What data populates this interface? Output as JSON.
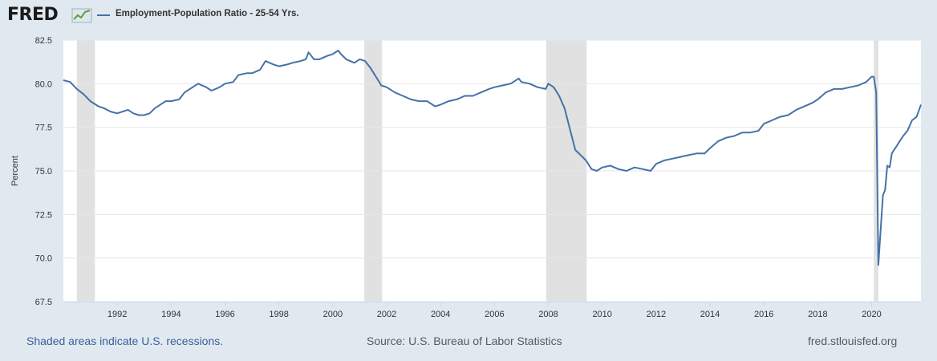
{
  "header": {
    "logo_text": "FRED",
    "logo_icon": "line-graph-icon",
    "series_title": "Employment-Population Ratio - 25-54 Yrs."
  },
  "footer": {
    "recession_note": "Shaded areas indicate U.S. recessions.",
    "source": "Source: U.S. Bureau of Labor Statistics",
    "site": "fred.stlouisfed.org"
  },
  "colors": {
    "line": "#4572a7",
    "recession": "#e1e1e1",
    "background": "#e1e9f0",
    "plot_background": "#ffffff",
    "grid": "#e6e6e6",
    "logo_green": "#57a338"
  },
  "chart_data": {
    "type": "line",
    "title": "",
    "xlabel": "",
    "ylabel": "Percent",
    "xlim": [
      1990.0,
      2021.83
    ],
    "ylim": [
      67.5,
      82.5
    ],
    "y_ticks": [
      "67.5",
      "70.0",
      "72.5",
      "75.0",
      "77.5",
      "80.0",
      "82.5"
    ],
    "x_ticks": [
      "1992",
      "1994",
      "1996",
      "1998",
      "2000",
      "2002",
      "2004",
      "2006",
      "2008",
      "2010",
      "2012",
      "2014",
      "2016",
      "2018",
      "2020"
    ],
    "grid": true,
    "legend": "top-left",
    "recessions": [
      [
        1990.5,
        1991.17
      ],
      [
        2001.17,
        2001.83
      ],
      [
        2007.92,
        2009.42
      ],
      [
        2020.08,
        2020.25
      ]
    ],
    "series": [
      {
        "name": "Employment-Population Ratio - 25-54 Yrs.",
        "x": [
          1990.0,
          1990.25,
          1990.5,
          1990.75,
          1991.0,
          1991.2,
          1991.3,
          1991.5,
          1991.75,
          1992.0,
          1992.2,
          1992.4,
          1992.6,
          1992.8,
          1993.0,
          1993.2,
          1993.4,
          1993.6,
          1993.8,
          1994.0,
          1994.3,
          1994.5,
          1994.8,
          1995.0,
          1995.3,
          1995.5,
          1995.8,
          1996.0,
          1996.3,
          1996.5,
          1996.8,
          1997.0,
          1997.3,
          1997.5,
          1997.8,
          1998.0,
          1998.3,
          1998.5,
          1998.8,
          1999.0,
          1999.1,
          1999.3,
          1999.5,
          1999.8,
          2000.0,
          2000.2,
          2000.3,
          2000.5,
          2000.8,
          2001.0,
          2001.2,
          2001.4,
          2001.6,
          2001.8,
          2002.0,
          2002.3,
          2002.6,
          2002.9,
          2003.2,
          2003.5,
          2003.8,
          2004.0,
          2004.3,
          2004.6,
          2004.9,
          2005.2,
          2005.5,
          2005.8,
          2006.0,
          2006.3,
          2006.6,
          2006.9,
          2007.0,
          2007.3,
          2007.6,
          2007.9,
          2008.0,
          2008.2,
          2008.4,
          2008.6,
          2008.8,
          2009.0,
          2009.2,
          2009.4,
          2009.6,
          2009.8,
          2010.0,
          2010.3,
          2010.6,
          2010.9,
          2011.2,
          2011.5,
          2011.8,
          2012.0,
          2012.3,
          2012.6,
          2012.9,
          2013.2,
          2013.5,
          2013.8,
          2014.0,
          2014.3,
          2014.6,
          2014.9,
          2015.2,
          2015.5,
          2015.8,
          2016.0,
          2016.3,
          2016.6,
          2016.9,
          2017.2,
          2017.5,
          2017.8,
          2018.0,
          2018.3,
          2018.6,
          2018.9,
          2019.2,
          2019.5,
          2019.8,
          2020.0,
          2020.08,
          2020.17,
          2020.25,
          2020.33,
          2020.42,
          2020.5,
          2020.58,
          2020.67,
          2020.75,
          2020.83,
          2020.92,
          2021.0,
          2021.17,
          2021.33,
          2021.5,
          2021.67,
          2021.83
        ],
        "values": [
          80.2,
          80.1,
          79.7,
          79.4,
          79.0,
          78.8,
          78.7,
          78.6,
          78.4,
          78.3,
          78.4,
          78.5,
          78.3,
          78.2,
          78.2,
          78.3,
          78.6,
          78.8,
          79.0,
          79.0,
          79.1,
          79.5,
          79.8,
          80.0,
          79.8,
          79.6,
          79.8,
          80.0,
          80.1,
          80.5,
          80.6,
          80.6,
          80.8,
          81.3,
          81.1,
          81.0,
          81.1,
          81.2,
          81.3,
          81.4,
          81.8,
          81.4,
          81.4,
          81.6,
          81.7,
          81.9,
          81.7,
          81.4,
          81.2,
          81.4,
          81.3,
          80.9,
          80.4,
          79.9,
          79.8,
          79.5,
          79.3,
          79.1,
          79.0,
          79.0,
          78.7,
          78.8,
          79.0,
          79.1,
          79.3,
          79.3,
          79.5,
          79.7,
          79.8,
          79.9,
          80.0,
          80.3,
          80.1,
          80.0,
          79.8,
          79.7,
          80.0,
          79.8,
          79.3,
          78.6,
          77.4,
          76.2,
          75.9,
          75.6,
          75.1,
          75.0,
          75.2,
          75.3,
          75.1,
          75.0,
          75.2,
          75.1,
          75.0,
          75.4,
          75.6,
          75.7,
          75.8,
          75.9,
          76.0,
          76.0,
          76.3,
          76.7,
          76.9,
          77.0,
          77.2,
          77.2,
          77.3,
          77.7,
          77.9,
          78.1,
          78.2,
          78.5,
          78.7,
          78.9,
          79.1,
          79.5,
          79.7,
          79.7,
          79.8,
          79.9,
          80.1,
          80.4,
          80.4,
          79.5,
          69.6,
          71.5,
          73.6,
          73.9,
          75.3,
          75.2,
          76.0,
          76.2,
          76.4,
          76.6,
          77.0,
          77.3,
          77.9,
          78.1,
          78.8
        ]
      }
    ]
  }
}
